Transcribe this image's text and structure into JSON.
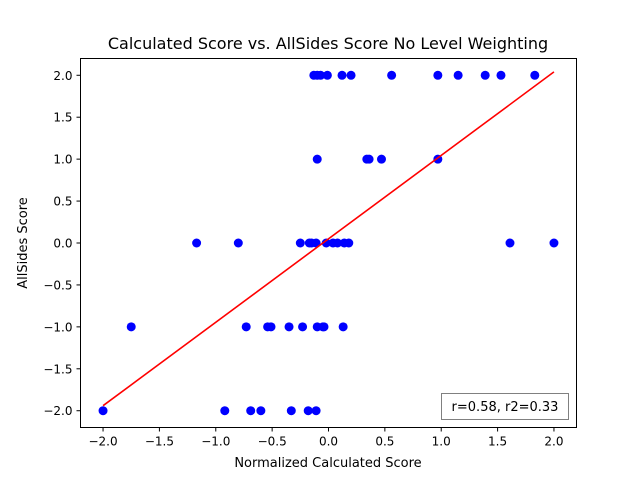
{
  "chart_data": {
    "type": "scatter",
    "title": "Calculated Score vs. AllSides Score No Level Weighting",
    "xlabel": "Normalized Calculated Score",
    "ylabel": "AllSides Score",
    "xlim": [
      -2.2,
      2.2
    ],
    "ylim": [
      -2.2,
      2.2
    ],
    "xticks": [
      -2.0,
      -1.5,
      -1.0,
      -0.5,
      0.0,
      0.5,
      1.0,
      1.5,
      2.0
    ],
    "yticks": [
      -2.0,
      -1.5,
      -1.0,
      -0.5,
      0.0,
      0.5,
      1.0,
      1.5,
      2.0
    ],
    "xtick_labels": [
      "−2.0",
      "−1.5",
      "−1.0",
      "−0.5",
      "0.0",
      "0.5",
      "1.0",
      "1.5",
      "2.0"
    ],
    "ytick_labels": [
      "−2.0",
      "−1.5",
      "−1.0",
      "−0.5",
      "0.0",
      "0.5",
      "1.0",
      "1.5",
      "2.0"
    ],
    "grid": false,
    "points_color": "#0000ff",
    "fit_color": "#ff0000",
    "points": [
      [
        -0.13,
        2.0
      ],
      [
        -0.1,
        2.0
      ],
      [
        -0.07,
        2.0
      ],
      [
        -0.01,
        2.0
      ],
      [
        0.12,
        2.0
      ],
      [
        0.2,
        2.0
      ],
      [
        0.56,
        2.0
      ],
      [
        0.97,
        2.0
      ],
      [
        1.15,
        2.0
      ],
      [
        1.39,
        2.0
      ],
      [
        1.53,
        2.0
      ],
      [
        1.83,
        2.0
      ],
      [
        0.34,
        1.0
      ],
      [
        0.36,
        1.0
      ],
      [
        0.47,
        1.0
      ],
      [
        -0.1,
        1.0
      ],
      [
        0.97,
        1.0
      ],
      [
        -1.17,
        0.0
      ],
      [
        -0.8,
        0.0
      ],
      [
        -0.25,
        0.0
      ],
      [
        -0.17,
        0.0
      ],
      [
        -0.15,
        0.0
      ],
      [
        -0.11,
        0.0
      ],
      [
        -0.02,
        0.0
      ],
      [
        0.04,
        0.0
      ],
      [
        0.08,
        0.0
      ],
      [
        0.14,
        0.0
      ],
      [
        0.18,
        0.0
      ],
      [
        1.61,
        0.0
      ],
      [
        2.0,
        0.0
      ],
      [
        -1.75,
        -1.0
      ],
      [
        -0.73,
        -1.0
      ],
      [
        -0.54,
        -1.0
      ],
      [
        -0.51,
        -1.0
      ],
      [
        -0.35,
        -1.0
      ],
      [
        -0.23,
        -1.0
      ],
      [
        -0.1,
        -1.0
      ],
      [
        -0.05,
        -1.0
      ],
      [
        -0.04,
        -1.0
      ],
      [
        0.13,
        -1.0
      ],
      [
        -2.0,
        -2.0
      ],
      [
        -0.92,
        -2.0
      ],
      [
        -0.69,
        -2.0
      ],
      [
        -0.6,
        -2.0
      ],
      [
        -0.33,
        -2.0
      ],
      [
        -0.18,
        -2.0
      ],
      [
        -0.11,
        -2.0
      ]
    ],
    "fit_line": [
      [
        -2.0,
        -1.94
      ],
      [
        2.0,
        2.04
      ]
    ],
    "annotation": "r=0.58, r2=0.33",
    "annotation_position": "bottom-right"
  }
}
